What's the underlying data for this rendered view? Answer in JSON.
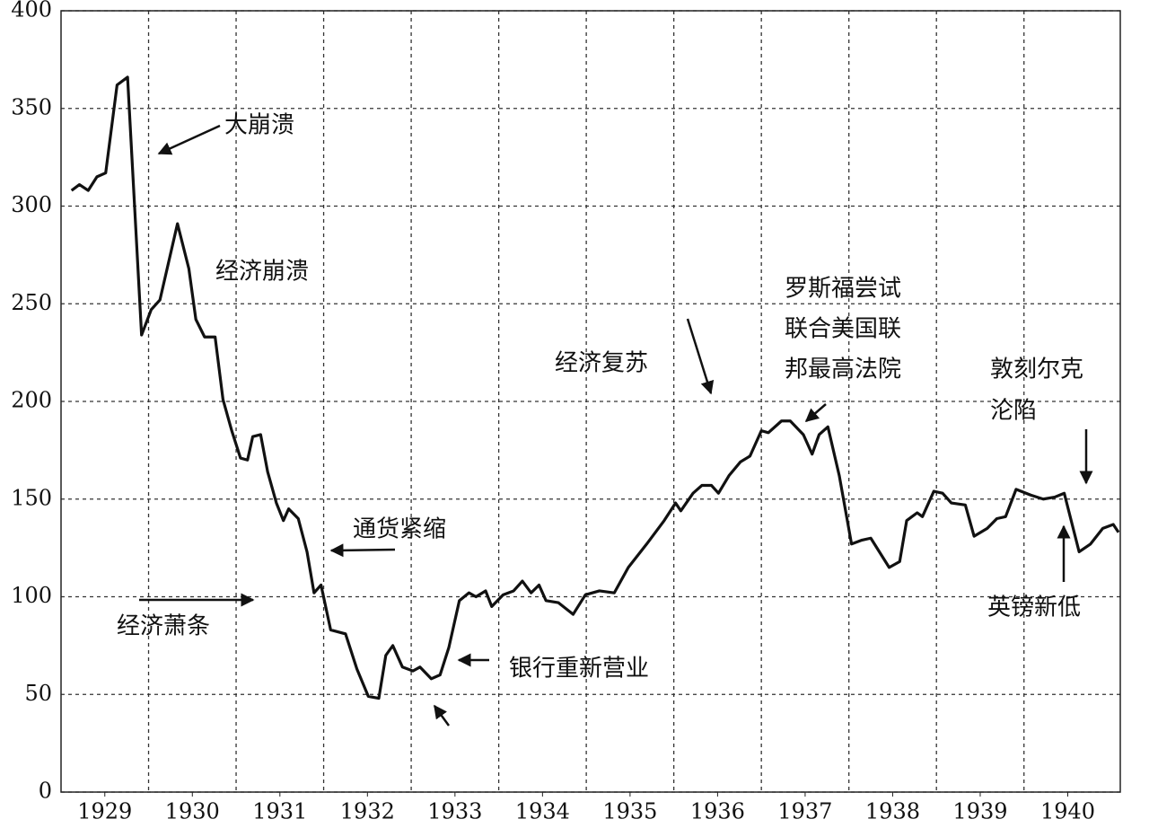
{
  "chart_data": {
    "type": "line",
    "x": [
      1929.12,
      1929.21,
      1929.31,
      1929.41,
      1929.51,
      1929.64,
      1929.76,
      1929.92,
      1930.03,
      1930.13,
      1930.33,
      1930.46,
      1930.54,
      1930.64,
      1930.76,
      1930.85,
      1930.95,
      1931.05,
      1931.13,
      1931.19,
      1931.28,
      1931.36,
      1931.46,
      1931.54,
      1931.6,
      1931.71,
      1931.81,
      1931.89,
      1931.97,
      1932.08,
      1932.25,
      1932.38,
      1932.51,
      1932.63,
      1932.71,
      1932.79,
      1932.9,
      1933.02,
      1933.1,
      1933.23,
      1933.33,
      1933.43,
      1933.55,
      1933.66,
      1933.74,
      1933.85,
      1933.92,
      1934.05,
      1934.17,
      1934.27,
      1934.37,
      1934.46,
      1934.54,
      1934.68,
      1934.85,
      1934.99,
      1935.15,
      1935.32,
      1935.48,
      1935.69,
      1935.89,
      1936.02,
      1936.08,
      1936.22,
      1936.32,
      1936.43,
      1936.51,
      1936.63,
      1936.76,
      1936.87,
      1937.0,
      1937.08,
      1937.23,
      1937.33,
      1937.48,
      1937.58,
      1937.66,
      1937.76,
      1937.89,
      1938.03,
      1938.15,
      1938.25,
      1938.46,
      1938.58,
      1938.66,
      1938.78,
      1938.84,
      1938.97,
      1939.07,
      1939.17,
      1939.33,
      1939.43,
      1939.58,
      1939.69,
      1939.79,
      1939.91,
      1940.08,
      1940.22,
      1940.35,
      1940.46,
      1940.63,
      1940.76,
      1940.9,
      1941.02,
      1941.08
    ],
    "series": [
      {
        "color": "#111111",
        "values": [
          308,
          311,
          308,
          315,
          317,
          362,
          366,
          234,
          247,
          252,
          291,
          268,
          242,
          233,
          233,
          201,
          185,
          171,
          170,
          182,
          183,
          164,
          148,
          139,
          145,
          140,
          123,
          102,
          106,
          83,
          81,
          63,
          49,
          48,
          70,
          75,
          64,
          62,
          64,
          58,
          60,
          74,
          98,
          102,
          100,
          103,
          95,
          101,
          103,
          108,
          102,
          106,
          98,
          97,
          91,
          101,
          103,
          102,
          115,
          127,
          139,
          148,
          144,
          153,
          157,
          157,
          153,
          162,
          169,
          172,
          185,
          184,
          190,
          190,
          183,
          173,
          183,
          187,
          162,
          127,
          129,
          130,
          115,
          118,
          139,
          143,
          141,
          154,
          153,
          148,
          147,
          131,
          135,
          140,
          141,
          155,
          152,
          150,
          151,
          153,
          123,
          127,
          135,
          137,
          133
        ]
      }
    ],
    "xlim": [
      1929,
      1941.1
    ],
    "ylim": [
      0,
      400
    ],
    "yticks": [
      0,
      50,
      100,
      150,
      200,
      250,
      300,
      350,
      400
    ],
    "xticks": [
      {
        "value": 1929.5,
        "label": "1929"
      },
      {
        "value": 1930.5,
        "label": "1930"
      },
      {
        "value": 1931.5,
        "label": "1931"
      },
      {
        "value": 1932.5,
        "label": "1932"
      },
      {
        "value": 1933.5,
        "label": "1933"
      },
      {
        "value": 1934.5,
        "label": "1934"
      },
      {
        "value": 1935.5,
        "label": "1935"
      },
      {
        "value": 1936.5,
        "label": "1936"
      },
      {
        "value": 1937.5,
        "label": "1937"
      },
      {
        "value": 1938.5,
        "label": "1938"
      },
      {
        "value": 1939.5,
        "label": "1939"
      },
      {
        "value": 1940.5,
        "label": "1940"
      }
    ],
    "x_grid_lines": [
      1930,
      1931,
      1932,
      1933,
      1934,
      1935,
      1936,
      1937,
      1938,
      1939,
      1940
    ],
    "grid": true,
    "annotations": [
      "大崩溃",
      "经济崩溃",
      "经济复苏",
      [
        "罗斯福尝试",
        "联合美国联",
        "邦最高法院"
      ],
      [
        "敦刻尔克",
        "沦陷"
      ],
      "通货紧缩",
      "经济萧条",
      "银行重新营业",
      "英镑新低"
    ]
  }
}
